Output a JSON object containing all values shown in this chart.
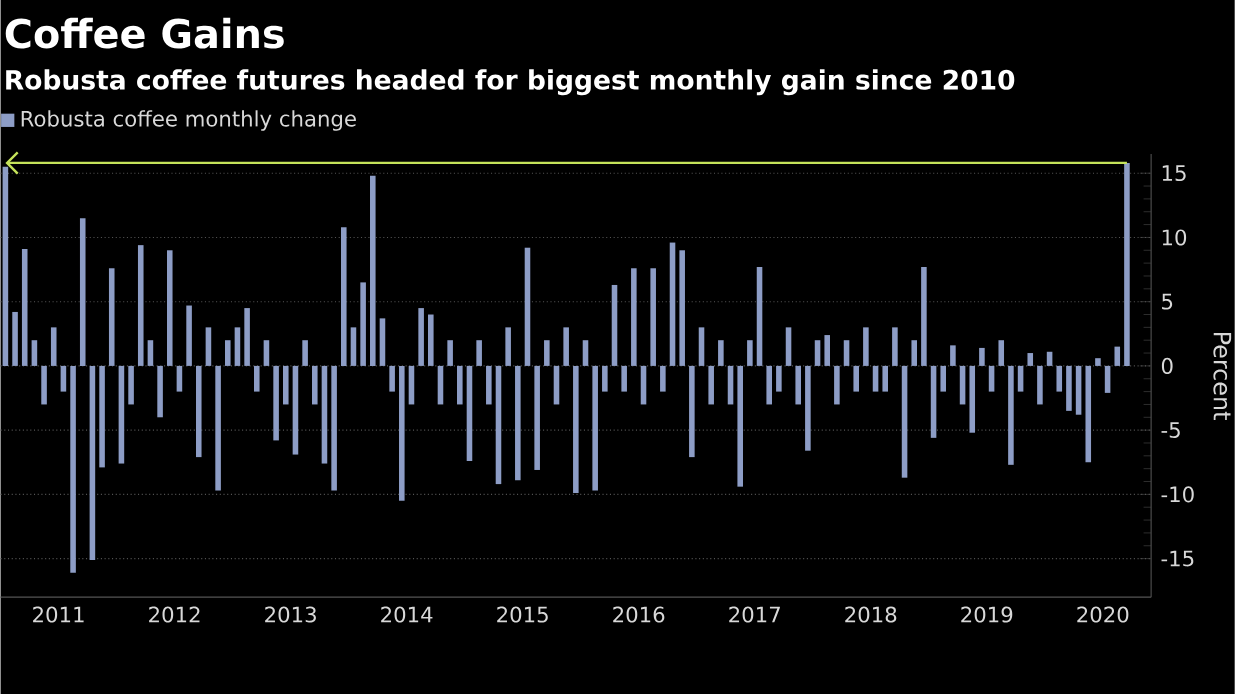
{
  "chart_data": {
    "type": "bar",
    "title": "Coffee Gains",
    "subtitle": "Robusta coffee futures headed for biggest monthly gain since 2010",
    "ylabel": "Percent",
    "x": [
      "2011-01",
      "2011-02",
      "2011-03",
      "2011-04",
      "2011-05",
      "2011-06",
      "2011-07",
      "2011-08",
      "2011-09",
      "2011-10",
      "2011-11",
      "2011-12",
      "2012-01",
      "2012-02",
      "2012-03",
      "2012-04",
      "2012-05",
      "2012-06",
      "2012-07",
      "2012-08",
      "2012-09",
      "2012-10",
      "2012-11",
      "2012-12",
      "2013-01",
      "2013-02",
      "2013-03",
      "2013-04",
      "2013-05",
      "2013-06",
      "2013-07",
      "2013-08",
      "2013-09",
      "2013-10",
      "2013-11",
      "2013-12",
      "2014-01",
      "2014-02",
      "2014-03",
      "2014-04",
      "2014-05",
      "2014-06",
      "2014-07",
      "2014-08",
      "2014-09",
      "2014-10",
      "2014-11",
      "2014-12",
      "2015-01",
      "2015-02",
      "2015-03",
      "2015-04",
      "2015-05",
      "2015-06",
      "2015-07",
      "2015-08",
      "2015-09",
      "2015-10",
      "2015-11",
      "2015-12",
      "2016-01",
      "2016-02",
      "2016-03",
      "2016-04",
      "2016-05",
      "2016-06",
      "2016-07",
      "2016-08",
      "2016-09",
      "2016-10",
      "2016-11",
      "2016-12",
      "2017-01",
      "2017-02",
      "2017-03",
      "2017-04",
      "2017-05",
      "2017-06",
      "2017-07",
      "2017-08",
      "2017-09",
      "2017-10",
      "2017-11",
      "2017-12",
      "2018-01",
      "2018-02",
      "2018-03",
      "2018-04",
      "2018-05",
      "2018-06",
      "2018-07",
      "2018-08",
      "2018-09",
      "2018-10",
      "2018-11",
      "2018-12",
      "2019-01",
      "2019-02",
      "2019-03",
      "2019-04",
      "2019-05",
      "2019-06",
      "2019-07",
      "2019-08",
      "2019-09",
      "2019-10",
      "2019-11",
      "2019-12",
      "2020-01",
      "2020-02",
      "2020-03",
      "2020-04",
      "2020-05",
      "2020-06",
      "2020-07",
      "2020-08",
      "2020-09"
    ],
    "series": [
      {
        "name": "Robusta coffee monthly change",
        "color": "#8d9dc6",
        "values": [
          15.5,
          4.2,
          9.1,
          2,
          -3,
          3,
          -2,
          -16.1,
          11.5,
          -15.1,
          -7.9,
          7.6,
          -7.6,
          -3,
          9.4,
          2,
          -4,
          9.0,
          -2,
          4.7,
          -7.1,
          3,
          -9.7,
          2,
          3,
          4.5,
          -2,
          2,
          -5.8,
          -3,
          -6.9,
          2,
          -3,
          -7.6,
          -9.7,
          10.8,
          3,
          6.5,
          14.8,
          3.7,
          -2,
          -10.5,
          -3,
          4.5,
          4,
          -3,
          2,
          -3,
          -7.4,
          2,
          -3,
          -9.2,
          3,
          -8.9,
          9.2,
          -8.1,
          2,
          -3,
          3,
          -9.9,
          2,
          -9.7,
          -2,
          6.3,
          -2,
          7.6,
          -3,
          7.6,
          -2,
          9.6,
          9.0,
          -7.1,
          3,
          -3,
          2,
          -3,
          -9.4,
          2,
          7.7,
          -3,
          -2,
          3,
          -3,
          -6.6,
          2,
          2.4,
          -3,
          2,
          -2,
          3,
          -2,
          -2,
          3,
          -8.7,
          2,
          7.7,
          -5.6,
          -2,
          1.6,
          -3,
          -5.2,
          1.4,
          -2,
          2,
          -7.7,
          -2,
          1,
          -3,
          1.1,
          -2,
          -3.5,
          -3.8,
          -7.5,
          0.6,
          -2.1,
          1.5,
          15.8
        ]
      }
    ],
    "xlim": [
      "2011-01-01",
      "2020-12-01"
    ],
    "xticks": [
      {
        "value": "2011-07-01",
        "label": "2011"
      },
      {
        "value": "2012-07-01",
        "label": "2012"
      },
      {
        "value": "2013-07-01",
        "label": "2013"
      },
      {
        "value": "2014-07-01",
        "label": "2014"
      },
      {
        "value": "2015-07-01",
        "label": "2015"
      },
      {
        "value": "2016-07-01",
        "label": "2016"
      },
      {
        "value": "2017-07-01",
        "label": "2017"
      },
      {
        "value": "2018-07-01",
        "label": "2018"
      },
      {
        "value": "2019-07-01",
        "label": "2019"
      },
      {
        "value": "2020-07-01",
        "label": "2020"
      }
    ],
    "ylim": [
      -18,
      16.5
    ],
    "yticks": [
      -15,
      -10,
      -5,
      0,
      5,
      10,
      15
    ],
    "ref_lines": [
      {
        "axis": "y",
        "value": 15.8,
        "color": "#c5e35a"
      }
    ],
    "grid": "y",
    "legend": "top left"
  }
}
